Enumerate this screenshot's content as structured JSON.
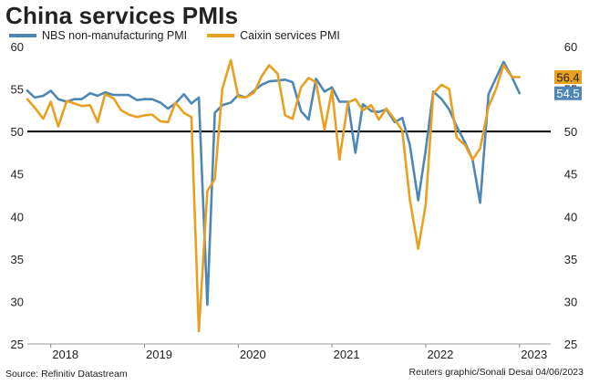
{
  "chart_data": {
    "type": "line",
    "title": "China services PMIs",
    "xlabel": "",
    "ylabel": "",
    "ylim": [
      25,
      60
    ],
    "yticks": [
      25,
      30,
      35,
      40,
      45,
      50,
      55,
      60
    ],
    "reference_line": 50,
    "x_start": 2017.75,
    "x_end": 2023.3333,
    "year_labels": [
      {
        "label": "2018",
        "pos": 2018.0
      },
      {
        "label": "2019",
        "pos": 2019.0
      },
      {
        "label": "2020",
        "pos": 2020.0
      },
      {
        "label": "2021",
        "pos": 2021.0
      },
      {
        "label": "2022",
        "pos": 2022.0
      },
      {
        "label": "2023",
        "pos": 2023.0
      }
    ],
    "series": [
      {
        "name": "NBS non-manufacturing PMI",
        "color": "#4e87b5",
        "end_label": "54.5",
        "values": [
          [
            2017.75,
            54.8
          ],
          [
            2017.83,
            54.0
          ],
          [
            2017.92,
            54.2
          ],
          [
            2018.0,
            54.8
          ],
          [
            2018.08,
            53.8
          ],
          [
            2018.17,
            53.5
          ],
          [
            2018.25,
            53.8
          ],
          [
            2018.33,
            53.8
          ],
          [
            2018.42,
            54.5
          ],
          [
            2018.5,
            54.2
          ],
          [
            2018.58,
            54.6
          ],
          [
            2018.67,
            54.3
          ],
          [
            2018.75,
            54.3
          ],
          [
            2018.83,
            54.3
          ],
          [
            2018.92,
            53.7
          ],
          [
            2019.0,
            53.8
          ],
          [
            2019.08,
            53.8
          ],
          [
            2019.17,
            53.4
          ],
          [
            2019.25,
            52.7
          ],
          [
            2019.33,
            53.3
          ],
          [
            2019.42,
            54.4
          ],
          [
            2019.5,
            53.3
          ],
          [
            2019.58,
            54.0
          ],
          [
            2019.67,
            29.6
          ],
          [
            2019.75,
            52.2
          ],
          [
            2019.83,
            53.1
          ],
          [
            2019.92,
            53.4
          ],
          [
            2020.0,
            54.3
          ],
          [
            2020.08,
            54.0
          ],
          [
            2020.17,
            54.8
          ],
          [
            2020.25,
            55.5
          ],
          [
            2020.33,
            55.9
          ],
          [
            2020.42,
            56.0
          ],
          [
            2020.5,
            56.1
          ],
          [
            2020.58,
            55.8
          ],
          [
            2020.67,
            52.4
          ],
          [
            2020.75,
            51.4
          ],
          [
            2020.83,
            56.2
          ],
          [
            2020.92,
            54.7
          ],
          [
            2021.0,
            55.2
          ],
          [
            2021.08,
            53.5
          ],
          [
            2021.17,
            53.5
          ],
          [
            2021.25,
            47.5
          ],
          [
            2021.33,
            53.2
          ],
          [
            2021.42,
            52.4
          ],
          [
            2021.5,
            52.3
          ],
          [
            2021.58,
            52.6
          ],
          [
            2021.67,
            51.1
          ],
          [
            2021.75,
            51.6
          ],
          [
            2021.83,
            48.4
          ],
          [
            2021.92,
            41.9
          ],
          [
            2022.0,
            47.8
          ],
          [
            2022.08,
            54.7
          ],
          [
            2022.17,
            53.8
          ],
          [
            2022.25,
            52.6
          ],
          [
            2022.33,
            50.6
          ],
          [
            2022.42,
            48.7
          ],
          [
            2022.5,
            46.7
          ],
          [
            2022.58,
            41.6
          ],
          [
            2022.67,
            54.4
          ],
          [
            2022.75,
            56.3
          ],
          [
            2022.83,
            58.2
          ],
          [
            2022.92,
            56.4
          ],
          [
            2023.0,
            54.5
          ]
        ]
      },
      {
        "name": "Caixin services PMI",
        "color": "#e8a020",
        "end_label": "56.4",
        "values": [
          [
            2017.75,
            53.8
          ],
          [
            2017.83,
            52.8
          ],
          [
            2017.92,
            51.5
          ],
          [
            2018.0,
            53.5
          ],
          [
            2018.08,
            50.6
          ],
          [
            2018.17,
            53.6
          ],
          [
            2018.25,
            53.3
          ],
          [
            2018.33,
            53.0
          ],
          [
            2018.42,
            53.1
          ],
          [
            2018.5,
            51.1
          ],
          [
            2018.58,
            54.4
          ],
          [
            2018.67,
            53.9
          ],
          [
            2018.75,
            52.5
          ],
          [
            2018.83,
            52.0
          ],
          [
            2018.92,
            51.7
          ],
          [
            2019.0,
            51.9
          ],
          [
            2019.08,
            52.0
          ],
          [
            2019.17,
            51.2
          ],
          [
            2019.25,
            51.1
          ],
          [
            2019.33,
            53.4
          ],
          [
            2019.42,
            52.2
          ],
          [
            2019.5,
            51.7
          ],
          [
            2019.58,
            26.5
          ],
          [
            2019.67,
            43.0
          ],
          [
            2019.75,
            44.4
          ],
          [
            2019.83,
            55.0
          ],
          [
            2019.92,
            58.4
          ],
          [
            2020.0,
            54.1
          ],
          [
            2020.08,
            54.0
          ],
          [
            2020.17,
            54.6
          ],
          [
            2020.25,
            56.5
          ],
          [
            2020.33,
            57.8
          ],
          [
            2020.42,
            56.8
          ],
          [
            2020.5,
            51.9
          ],
          [
            2020.58,
            51.5
          ],
          [
            2020.67,
            55.2
          ],
          [
            2020.75,
            56.3
          ],
          [
            2020.83,
            55.8
          ],
          [
            2020.92,
            50.2
          ],
          [
            2021.0,
            54.9
          ],
          [
            2021.08,
            46.7
          ],
          [
            2021.17,
            53.4
          ],
          [
            2021.25,
            53.8
          ],
          [
            2021.33,
            52.5
          ],
          [
            2021.42,
            53.1
          ],
          [
            2021.5,
            51.4
          ],
          [
            2021.58,
            52.7
          ],
          [
            2021.67,
            51.4
          ],
          [
            2021.75,
            50.1
          ],
          [
            2021.83,
            42.0
          ],
          [
            2021.92,
            36.2
          ],
          [
            2022.0,
            41.4
          ],
          [
            2022.08,
            54.5
          ],
          [
            2022.17,
            55.5
          ],
          [
            2022.25,
            55.0
          ],
          [
            2022.33,
            49.3
          ],
          [
            2022.42,
            48.4
          ],
          [
            2022.5,
            46.7
          ],
          [
            2022.58,
            48.0
          ],
          [
            2022.67,
            52.9
          ],
          [
            2022.75,
            55.0
          ],
          [
            2022.83,
            57.8
          ],
          [
            2022.92,
            56.4
          ],
          [
            2023.0,
            56.4
          ]
        ]
      }
    ]
  },
  "source": "Source: Refinitiv Datastream",
  "credit": "Reuters graphic/Sonali Desai 04/06/2023"
}
